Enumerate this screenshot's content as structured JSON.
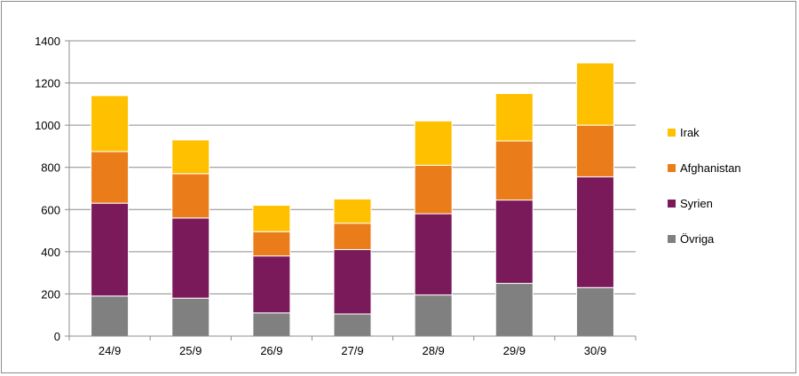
{
  "chart_data": {
    "type": "bar",
    "stacked": true,
    "categories": [
      "24/9",
      "25/9",
      "26/9",
      "27/9",
      "28/9",
      "29/9",
      "30/9"
    ],
    "series": [
      {
        "name": "Övriga",
        "color": "#808080",
        "values": [
          190,
          180,
          110,
          105,
          195,
          250,
          230
        ]
      },
      {
        "name": "Syrien",
        "color": "#7b1a5a",
        "values": [
          440,
          380,
          270,
          305,
          385,
          395,
          525
        ]
      },
      {
        "name": "Afghanistan",
        "color": "#ea7c1a",
        "values": [
          245,
          210,
          115,
          125,
          230,
          280,
          245
        ]
      },
      {
        "name": "Irak",
        "color": "#ffc000",
        "values": [
          265,
          160,
          125,
          115,
          210,
          225,
          295
        ]
      }
    ],
    "ylim": [
      0,
      1400
    ],
    "yticks": [
      0,
      200,
      400,
      600,
      800,
      1000,
      1200,
      1400
    ],
    "grid": true,
    "legend_position": "right"
  }
}
